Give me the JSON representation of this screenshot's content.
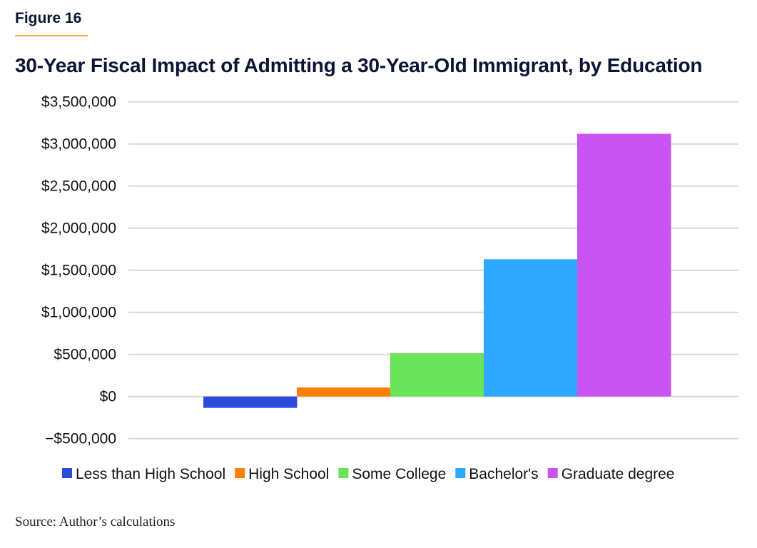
{
  "figure_label": "Figure 16",
  "source": "Source: Author’s calculations",
  "chart_data": {
    "type": "bar",
    "title": "30-Year Fiscal Impact of Admitting a 30-Year-Old Immigrant, by Education",
    "xlabel": "",
    "ylabel": "",
    "ylim": [
      -500000,
      3500000
    ],
    "yticks": [
      -500000,
      0,
      500000,
      1000000,
      1500000,
      2000000,
      2500000,
      3000000,
      3500000
    ],
    "ytick_labels": [
      "−$500,000",
      "$0",
      "$500,000",
      "$1,000,000",
      "$1,500,000",
      "$2,000,000",
      "$2,500,000",
      "$3,000,000",
      "$3,500,000"
    ],
    "grid": true,
    "legend_position": "bottom",
    "series": [
      {
        "name": "Less than High School",
        "value": -135000,
        "color": "#2d4adb"
      },
      {
        "name": "High School",
        "value": 107000,
        "color": "#ff8000"
      },
      {
        "name": "Some College",
        "value": 514000,
        "color": "#69e35a"
      },
      {
        "name": "Bachelor's",
        "value": 1630000,
        "color": "#2ea9ff"
      },
      {
        "name": "Graduate degree",
        "value": 3120000,
        "color": "#c853f2"
      }
    ]
  }
}
